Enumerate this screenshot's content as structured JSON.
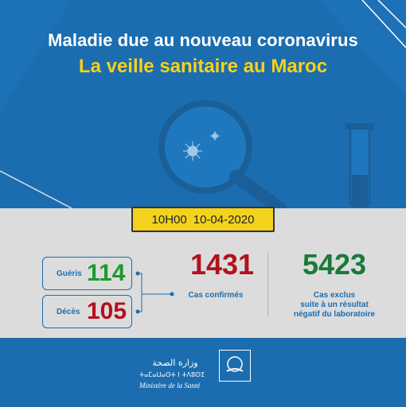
{
  "header": {
    "title": "Maladie due au nouveau coronavirus",
    "subtitle": "La veille sanitaire au Maroc"
  },
  "timestamp": {
    "time": "10H00",
    "date": "10-04-2020"
  },
  "stats": {
    "recovered": {
      "label": "Guéris",
      "value": "114"
    },
    "deaths": {
      "label": "Décès",
      "value": "105"
    },
    "confirmed": {
      "value": "1431",
      "label": "Cas confirmés"
    },
    "excluded": {
      "value": "5423",
      "label_line1": "Cas exclus",
      "label_line2": "suite à un résultat",
      "label_line3": "négatif du laboratoire"
    }
  },
  "ministry": {
    "arabic": "وزارة الصحة",
    "tifinagh": "ⵜⴰⵎⴰⵡⴰⵙⵜ ⵏ ⵜⴷⵓⵙⵉ",
    "french": "Ministère de la Santé"
  },
  "colors": {
    "blue": "#1b6db0",
    "yellow": "#f3d21c",
    "green": "#1d9a2f",
    "red": "#b3121c"
  },
  "icons": [
    "magnifier-icon",
    "virus-icon",
    "test-tube-icon",
    "ministry-logo-icon"
  ]
}
